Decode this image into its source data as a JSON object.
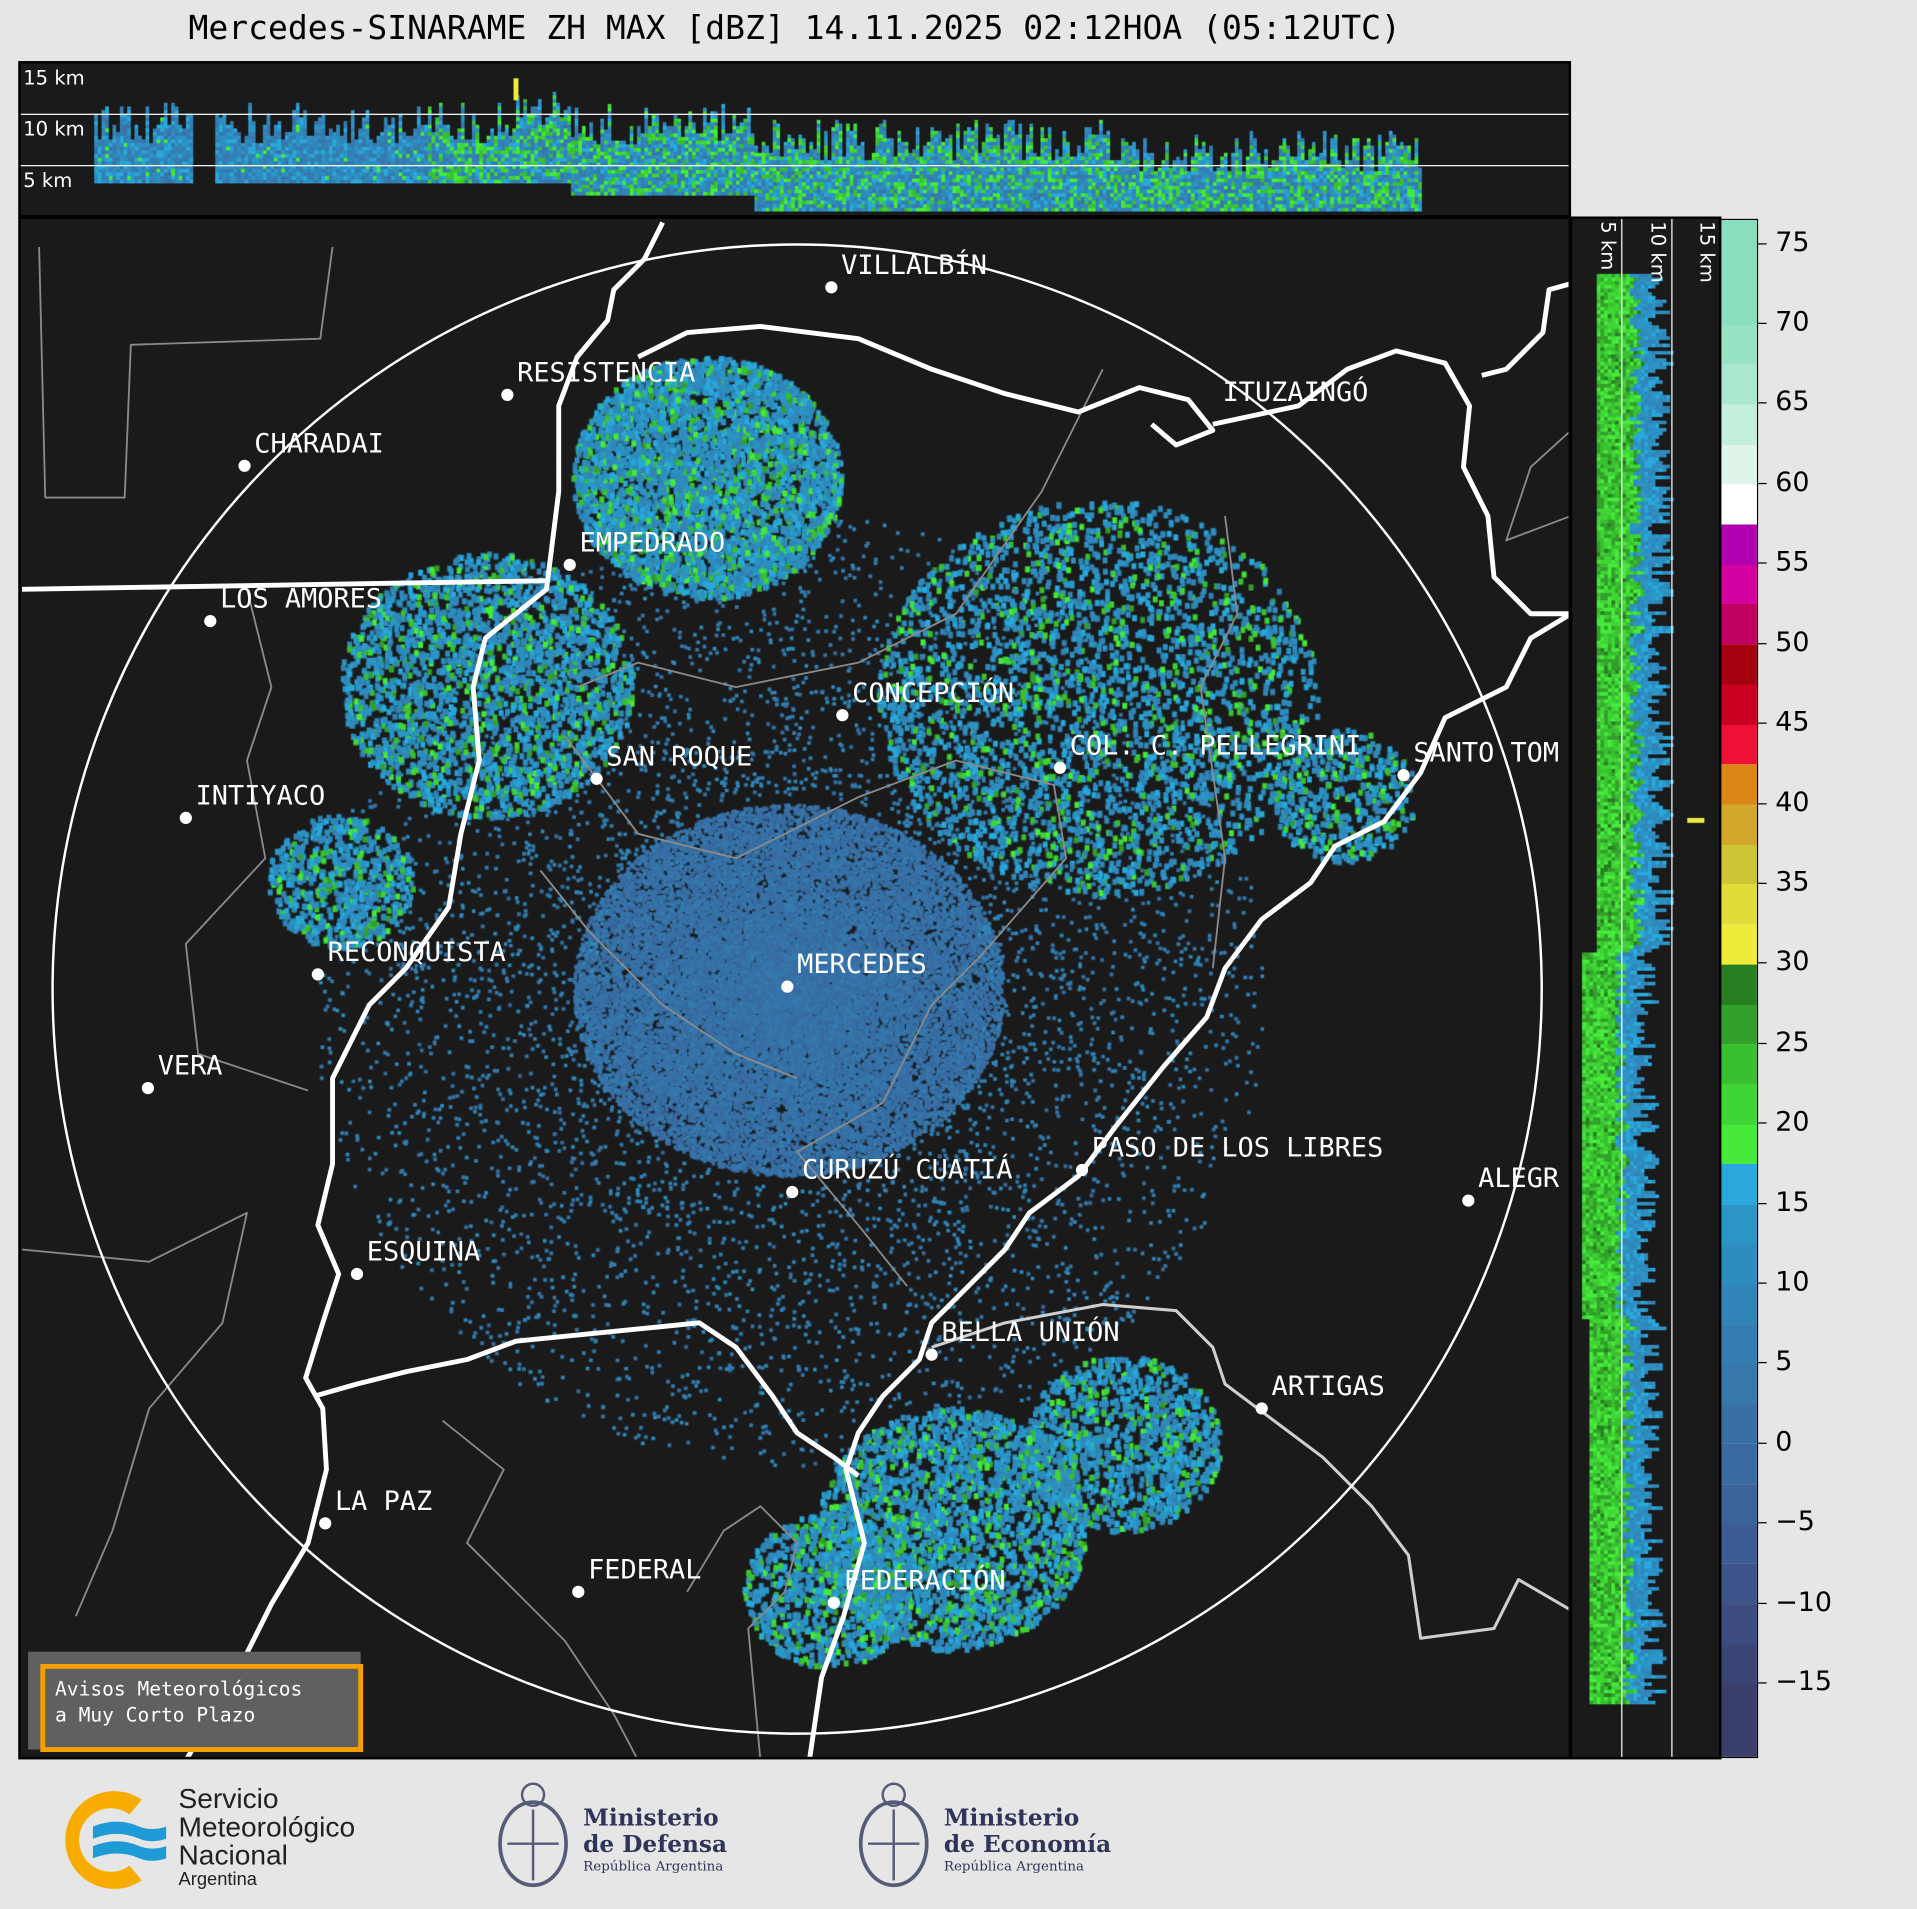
{
  "title": "Mercedes-SINARAME ZH MAX [dBZ] 14.11.2025 02:12HOA (05:12UTC)",
  "top_panel": {
    "height_labels": [
      "15 km",
      "10 km",
      "5 km"
    ]
  },
  "side_panel": {
    "height_labels": [
      "5 km",
      "10 km",
      "15 km"
    ]
  },
  "cities": [
    {
      "name": "VILLALBÍN"
    },
    {
      "name": "RESISTENCIA"
    },
    {
      "name": "CHARADAI"
    },
    {
      "name": "ITUZAINGÓ"
    },
    {
      "name": "EMPEDRADO"
    },
    {
      "name": "LOS AMORES"
    },
    {
      "name": "CONCEPCIÓN"
    },
    {
      "name": "SAN ROQUE"
    },
    {
      "name": "COL. C. PELLEGRINI"
    },
    {
      "name": "SANTO TOM"
    },
    {
      "name": "INTIYACO"
    },
    {
      "name": "RECONQUISTA"
    },
    {
      "name": "MERCEDES"
    },
    {
      "name": "VERA"
    },
    {
      "name": "PASO DE LOS LIBRES"
    },
    {
      "name": "CURUZÚ CUATIÁ"
    },
    {
      "name": "ALEGR"
    },
    {
      "name": "ESQUINA"
    },
    {
      "name": "BELLA UNIÓN"
    },
    {
      "name": "ARTIGAS"
    },
    {
      "name": "LA PAZ"
    },
    {
      "name": "FEDERAL"
    },
    {
      "name": "FEDERACIÓN"
    }
  ],
  "warning_box": {
    "line1": "Avisos Meteorológicos",
    "line2": "a Muy Corto Plazo",
    "border_color": "#f5a000"
  },
  "colorbar": {
    "unit": "dBZ",
    "range": [
      -19.5,
      76.5
    ],
    "ticks": [
      "75",
      "70",
      "65",
      "60",
      "55",
      "50",
      "45",
      "40",
      "35",
      "30",
      "25",
      "20",
      "15",
      "10",
      "5",
      "0",
      "−5",
      "−10",
      "−15"
    ],
    "tick_values": [
      75,
      70,
      65,
      60,
      55,
      50,
      45,
      40,
      35,
      30,
      25,
      20,
      15,
      10,
      5,
      0,
      -5,
      -10,
      -15
    ],
    "bins": [
      {
        "from": -19.5,
        "to": -15,
        "color": "#3a3e6b"
      },
      {
        "from": -15,
        "to": -12.5,
        "color": "#3b4575"
      },
      {
        "from": -12.5,
        "to": -10,
        "color": "#3c4c80"
      },
      {
        "from": -10,
        "to": -7.5,
        "color": "#3c548a"
      },
      {
        "from": -7.5,
        "to": -5,
        "color": "#3b5b92"
      },
      {
        "from": -5,
        "to": -2.5,
        "color": "#3a6399"
      },
      {
        "from": -2.5,
        "to": 0,
        "color": "#396aa1"
      },
      {
        "from": 0,
        "to": 2.5,
        "color": "#3870a6"
      },
      {
        "from": 2.5,
        "to": 5,
        "color": "#3677ac"
      },
      {
        "from": 5,
        "to": 7.5,
        "color": "#347db1"
      },
      {
        "from": 7.5,
        "to": 10,
        "color": "#3184b7"
      },
      {
        "from": 10,
        "to": 12.5,
        "color": "#2e8cbe"
      },
      {
        "from": 12.5,
        "to": 15,
        "color": "#2b95c7"
      },
      {
        "from": 15,
        "to": 17.5,
        "color": "#28a8dc"
      },
      {
        "from": 17.5,
        "to": 20,
        "color": "#46ea3a"
      },
      {
        "from": 20,
        "to": 22.5,
        "color": "#3fd635"
      },
      {
        "from": 22.5,
        "to": 25,
        "color": "#39c030"
      },
      {
        "from": 25,
        "to": 27.5,
        "color": "#32a02a"
      },
      {
        "from": 27.5,
        "to": 30,
        "color": "#287f21"
      },
      {
        "from": 30,
        "to": 32.5,
        "color": "#eeec3a"
      },
      {
        "from": 32.5,
        "to": 35,
        "color": "#e0dc3a"
      },
      {
        "from": 35,
        "to": 37.5,
        "color": "#cdc533"
      },
      {
        "from": 37.5,
        "to": 40,
        "color": "#d3a72c"
      },
      {
        "from": 40,
        "to": 42.5,
        "color": "#dc8618"
      },
      {
        "from": 42.5,
        "to": 45,
        "color": "#ee1035"
      },
      {
        "from": 45,
        "to": 47.5,
        "color": "#ca0020"
      },
      {
        "from": 47.5,
        "to": 50,
        "color": "#a50010"
      },
      {
        "from": 50,
        "to": 52.5,
        "color": "#bf0060"
      },
      {
        "from": 52.5,
        "to": 55,
        "color": "#d500a0"
      },
      {
        "from": 55,
        "to": 57.5,
        "color": "#b000b0"
      },
      {
        "from": 57.5,
        "to": 60,
        "color": "#ffffff"
      },
      {
        "from": 60,
        "to": 62.5,
        "color": "#dff5ea"
      },
      {
        "from": 62.5,
        "to": 65,
        "color": "#c3efdc"
      },
      {
        "from": 65,
        "to": 67.5,
        "color": "#aae9cf"
      },
      {
        "from": 67.5,
        "to": 70,
        "color": "#97e3c4"
      },
      {
        "from": 70,
        "to": 76.5,
        "color": "#88debd"
      }
    ]
  },
  "footer": {
    "smn": {
      "line1": "Servicio",
      "line2": "Meteorológico",
      "line3": "Nacional",
      "line4": "Argentina"
    },
    "defensa": {
      "line1": "Ministerio",
      "line2": "de Defensa",
      "line3": "República Argentina"
    },
    "economia": {
      "line1": "Ministerio",
      "line2": "de Economía",
      "line3": "República Argentina"
    }
  }
}
